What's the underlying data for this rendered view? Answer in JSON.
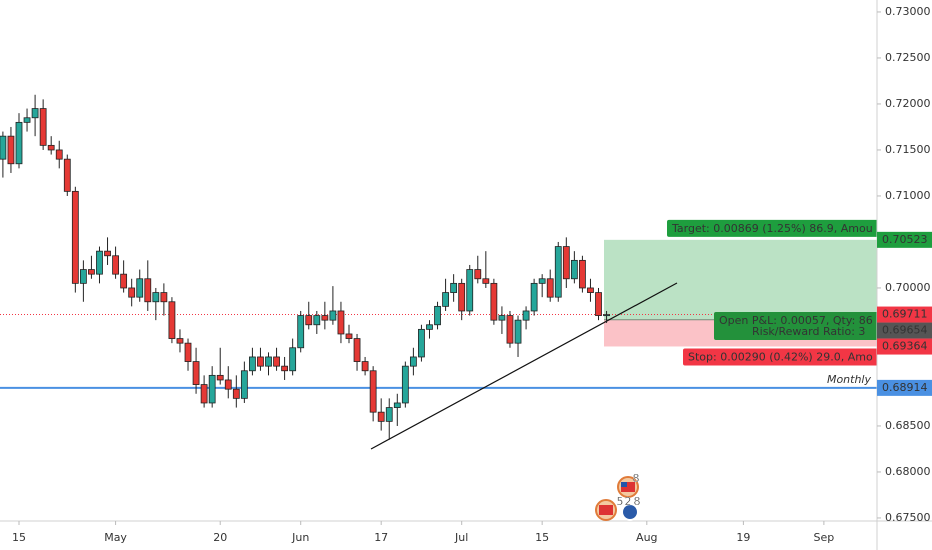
{
  "chart_data": {
    "type": "candlestick",
    "up_color": "#26a69a",
    "down_color": "#e53935",
    "x": [
      -2,
      -1,
      0,
      1,
      2,
      3,
      4,
      5,
      6,
      7,
      8,
      9,
      10,
      11,
      12,
      13,
      14,
      15,
      16,
      17,
      18,
      19,
      20,
      21,
      22,
      23,
      24,
      25,
      26,
      27,
      28,
      29,
      30,
      31,
      32,
      33,
      34,
      35,
      36,
      37,
      38,
      39,
      40,
      41,
      42,
      43,
      44,
      45,
      46,
      47,
      48,
      49,
      50,
      51,
      52,
      53,
      54,
      55,
      56,
      57,
      58,
      59,
      60,
      61,
      62,
      63,
      64,
      65,
      66,
      67,
      68,
      69,
      70,
      71,
      72,
      73
    ],
    "open": [
      0.714,
      0.7165,
      0.7135,
      0.718,
      0.7185,
      0.7195,
      0.7155,
      0.715,
      0.714,
      0.7105,
      0.7005,
      0.702,
      0.7015,
      0.704,
      0.7035,
      0.7015,
      0.7,
      0.699,
      0.701,
      0.6985,
      0.6995,
      0.6985,
      0.6945,
      0.694,
      0.692,
      0.6895,
      0.6875,
      0.6905,
      0.69,
      0.689,
      0.688,
      0.691,
      0.6925,
      0.6915,
      0.6925,
      0.6915,
      0.691,
      0.6935,
      0.697,
      0.696,
      0.697,
      0.6965,
      0.6975,
      0.695,
      0.6945,
      0.692,
      0.691,
      0.6865,
      0.6855,
      0.687,
      0.6875,
      0.6915,
      0.6925,
      0.6955,
      0.696,
      0.698,
      0.6995,
      0.7005,
      0.6975,
      0.702,
      0.701,
      0.7005,
      0.6965,
      0.697,
      0.694,
      0.6965,
      0.6975,
      0.7005,
      0.701,
      0.699,
      0.7045,
      0.701,
      0.703,
      0.7,
      0.6995,
      0.697
    ],
    "high": [
      0.717,
      0.7175,
      0.719,
      0.7195,
      0.721,
      0.7205,
      0.7165,
      0.716,
      0.7145,
      0.711,
      0.703,
      0.7035,
      0.7045,
      0.7055,
      0.7045,
      0.703,
      0.701,
      0.702,
      0.703,
      0.7,
      0.7005,
      0.699,
      0.6955,
      0.6945,
      0.6935,
      0.6905,
      0.6915,
      0.6935,
      0.6915,
      0.6905,
      0.692,
      0.6935,
      0.6935,
      0.693,
      0.6935,
      0.6925,
      0.6945,
      0.6975,
      0.6985,
      0.6975,
      0.6985,
      0.7002,
      0.6985,
      0.696,
      0.695,
      0.6925,
      0.6915,
      0.688,
      0.688,
      0.6885,
      0.692,
      0.6935,
      0.696,
      0.6965,
      0.6985,
      0.701,
      0.7015,
      0.701,
      0.7025,
      0.7035,
      0.704,
      0.701,
      0.698,
      0.6975,
      0.697,
      0.698,
      0.701,
      0.7015,
      0.702,
      0.705,
      0.7055,
      0.704,
      0.7035,
      0.701,
      0.7,
      0.6975
    ],
    "low": [
      0.712,
      0.7125,
      0.713,
      0.717,
      0.7165,
      0.715,
      0.7145,
      0.713,
      0.71,
      0.6995,
      0.6985,
      0.701,
      0.7005,
      0.7025,
      0.701,
      0.6995,
      0.698,
      0.6985,
      0.6975,
      0.6965,
      0.697,
      0.694,
      0.693,
      0.691,
      0.6885,
      0.687,
      0.687,
      0.6895,
      0.688,
      0.687,
      0.6875,
      0.6905,
      0.691,
      0.6905,
      0.691,
      0.69,
      0.6905,
      0.693,
      0.6955,
      0.695,
      0.6955,
      0.696,
      0.694,
      0.694,
      0.691,
      0.6905,
      0.6855,
      0.6845,
      0.6835,
      0.685,
      0.687,
      0.6905,
      0.692,
      0.6945,
      0.6955,
      0.6975,
      0.6985,
      0.6965,
      0.697,
      0.7005,
      0.7,
      0.696,
      0.695,
      0.6935,
      0.6925,
      0.6955,
      0.697,
      0.699,
      0.6985,
      0.6985,
      0.7,
      0.7005,
      0.6995,
      0.6985,
      0.6965,
      0.6962
    ],
    "close": [
      0.7165,
      0.7135,
      0.718,
      0.7185,
      0.7195,
      0.7155,
      0.715,
      0.714,
      0.7105,
      0.7005,
      0.702,
      0.7015,
      0.704,
      0.7035,
      0.7015,
      0.7,
      0.699,
      0.701,
      0.6985,
      0.6995,
      0.6985,
      0.6945,
      0.694,
      0.692,
      0.6895,
      0.6875,
      0.6905,
      0.69,
      0.689,
      0.688,
      0.691,
      0.6925,
      0.6915,
      0.6925,
      0.6915,
      0.691,
      0.6935,
      0.697,
      0.696,
      0.697,
      0.6965,
      0.6975,
      0.695,
      0.6945,
      0.692,
      0.691,
      0.6865,
      0.6855,
      0.687,
      0.6875,
      0.6915,
      0.6925,
      0.6955,
      0.696,
      0.698,
      0.6995,
      0.7005,
      0.6975,
      0.702,
      0.701,
      0.7005,
      0.6965,
      0.697,
      0.694,
      0.6965,
      0.6975,
      0.7005,
      0.701,
      0.699,
      0.7045,
      0.701,
      0.703,
      0.7,
      0.6995,
      0.697,
      0.6971
    ],
    "xlim": [
      -2.36,
      106.6
    ],
    "ylim": [
      0.67467,
      0.7313
    ],
    "xticks": [
      {
        "value": 0,
        "label": "15"
      },
      {
        "value": 12,
        "label": "May"
      },
      {
        "value": 25,
        "label": "20"
      },
      {
        "value": 35,
        "label": "Jun"
      },
      {
        "value": 45,
        "label": "17"
      },
      {
        "value": 55,
        "label": "Jul"
      },
      {
        "value": 65,
        "label": "15"
      },
      {
        "value": 78,
        "label": "Aug"
      },
      {
        "value": 90,
        "label": "19"
      },
      {
        "value": 100,
        "label": "Sep"
      }
    ],
    "yticks": [
      {
        "value": 0.675,
        "label": "0.67500"
      },
      {
        "value": 0.68,
        "label": "0.68000"
      },
      {
        "value": 0.685,
        "label": "0.68500"
      },
      {
        "value": 0.7,
        "label": "0.70000"
      },
      {
        "value": 0.71,
        "label": "0.71000"
      },
      {
        "value": 0.715,
        "label": "0.71500"
      },
      {
        "value": 0.72,
        "label": "0.72000"
      },
      {
        "value": 0.725,
        "label": "0.72500"
      },
      {
        "value": 0.73,
        "label": "0.73000"
      }
    ],
    "last_price": {
      "price": 0.69711,
      "color": "#f23645"
    },
    "target": {
      "price": 0.70523,
      "color": "#1e9e3e",
      "text": "Target: 0.00869 (1.25%) 86.9, Amou"
    },
    "entry": {
      "price": 0.69654,
      "color": "#555555",
      "text": [
        "Open P&L: 0.00057, Qty: 86",
        "Risk/Reward Ratio: 3"
      ]
    },
    "stop": {
      "price": 0.69364,
      "color": "#f23645",
      "text": "Stop: 0.00290 (0.42%) 29.0, Amo"
    },
    "monthly": {
      "price": 0.68914,
      "color": "#4a90e2",
      "text": "Monthly"
    },
    "event_badges": [
      "8",
      "5",
      "2",
      "8"
    ]
  }
}
